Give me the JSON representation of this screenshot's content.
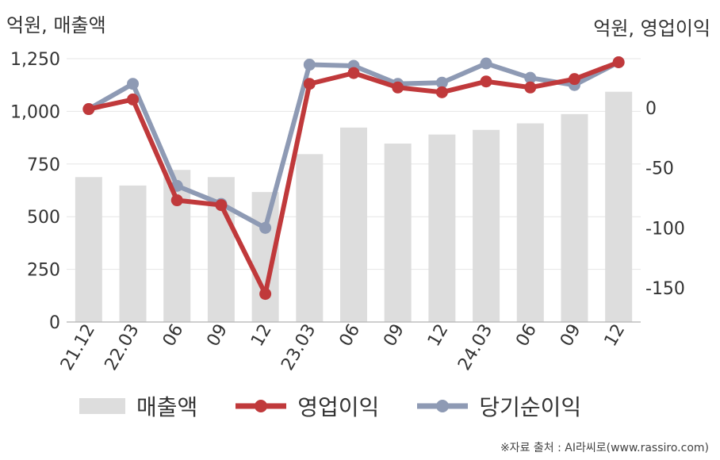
{
  "chart_data": {
    "type": "bar+line",
    "left_axis_unit": "억원, 매출액",
    "right_axis_unit": "억원, 영업이익",
    "categories": [
      "21.12",
      "22.03",
      "06",
      "09",
      "12",
      "23.03",
      "06",
      "09",
      "12",
      "24.03",
      "06",
      "09",
      "12"
    ],
    "y_left": {
      "ylim": [
        0,
        1250
      ],
      "ticks": [
        0,
        250,
        500,
        750,
        1000,
        1250
      ],
      "tick_labels": [
        "0",
        "250",
        "500",
        "750",
        "1,000",
        "1,250"
      ]
    },
    "y_right": {
      "ylim": [
        -180,
        38
      ],
      "ticks": [
        0,
        -50,
        -100,
        -150
      ],
      "tick_labels": [
        "0",
        "-50",
        "-100",
        "-150"
      ]
    },
    "series": [
      {
        "name": "매출액",
        "type": "bar",
        "axis": "left",
        "color": "#dddddd",
        "values": [
          688,
          648,
          722,
          688,
          617,
          797,
          923,
          847,
          890,
          912,
          943,
          987,
          1093
        ]
      },
      {
        "name": "영업이익",
        "type": "line",
        "axis": "right",
        "color": "#c0393b",
        "values": [
          -1,
          7,
          -77,
          -81,
          -155,
          20,
          29,
          17,
          13,
          22,
          17,
          24,
          38
        ]
      },
      {
        "name": "당기순이익",
        "type": "line",
        "axis": "right",
        "color": "#8e9ab4",
        "values": [
          -1,
          20,
          -65,
          -80,
          -100,
          36,
          35,
          20,
          21,
          37,
          25,
          19,
          38
        ]
      }
    ],
    "grid": true,
    "legend_position": "bottom"
  },
  "source": "※자료 출처 : AI라씨로(www.rassiro.com)"
}
